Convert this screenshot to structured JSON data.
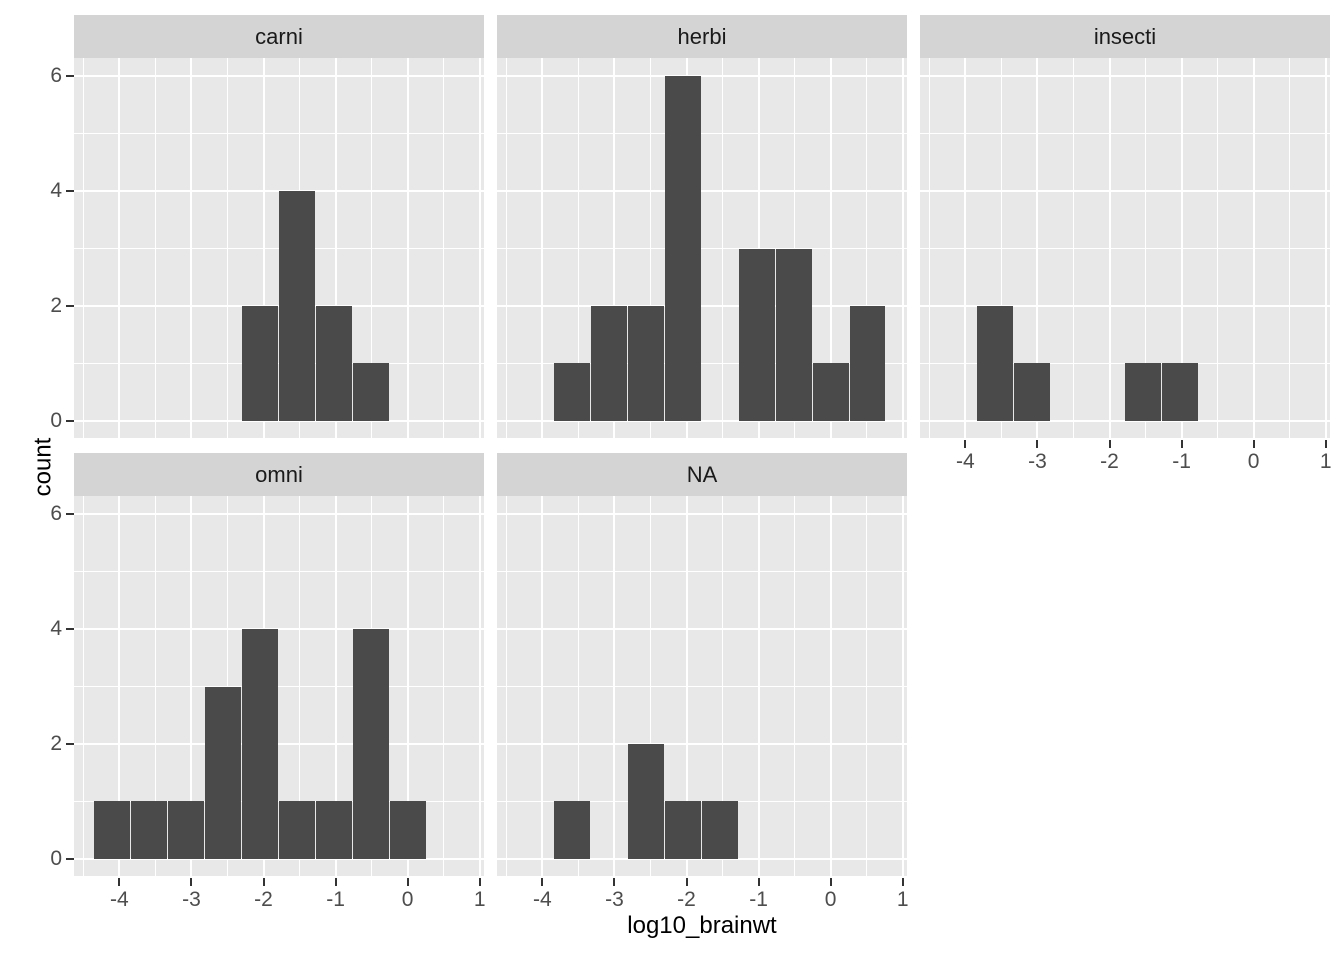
{
  "chart_data": {
    "type": "histogram",
    "title": "",
    "xlabel": "log10_brainwt",
    "ylabel": "count",
    "facet_variable_values": [
      "carni",
      "herbi",
      "insecti",
      "omni",
      "NA"
    ],
    "bin_edges": [
      -4.3546,
      -3.8423,
      -3.33,
      -2.8177,
      -2.3054,
      -1.7931,
      -1.2808,
      -0.7685,
      -0.2562,
      0.2561,
      0.7684
    ],
    "series": [
      {
        "name": "carni",
        "counts": [
          0,
          0,
          0,
          0,
          2,
          4,
          2,
          1,
          0,
          0
        ]
      },
      {
        "name": "herbi",
        "counts": [
          0,
          1,
          2,
          2,
          6,
          0,
          3,
          3,
          1,
          2
        ]
      },
      {
        "name": "insecti",
        "counts": [
          0,
          2,
          1,
          0,
          0,
          1,
          1,
          0,
          0,
          0
        ]
      },
      {
        "name": "omni",
        "counts": [
          1,
          1,
          1,
          3,
          4,
          1,
          1,
          4,
          1,
          0
        ]
      },
      {
        "name": "NA",
        "counts": [
          0,
          1,
          0,
          2,
          1,
          1,
          0,
          0,
          0,
          0
        ]
      }
    ],
    "x_ticks": [
      -4,
      -3,
      -2,
      -1,
      0,
      1
    ],
    "y_ticks": [
      0,
      2,
      4,
      6
    ],
    "x_minor_breaks": [
      -4.5,
      -3.5,
      -2.5,
      -1.5,
      -0.5,
      0.5
    ],
    "y_minor_breaks": [
      1,
      3,
      5
    ],
    "x_domain": [
      -4.63,
      1.06
    ],
    "y_domain": [
      -0.3,
      6.32
    ],
    "grid": true,
    "legend_position": "none"
  },
  "colors": {
    "bar_fill": "#4a4a4a",
    "panel_background": "#e8e8e8",
    "strip_background": "#d4d4d4",
    "gridline": "#ffffff",
    "tick_mark": "#333333",
    "axis_text": "#4d4d4d",
    "strip_text": "#1a1a1a",
    "title_text": "#000000",
    "figure_background": "#ffffff"
  }
}
